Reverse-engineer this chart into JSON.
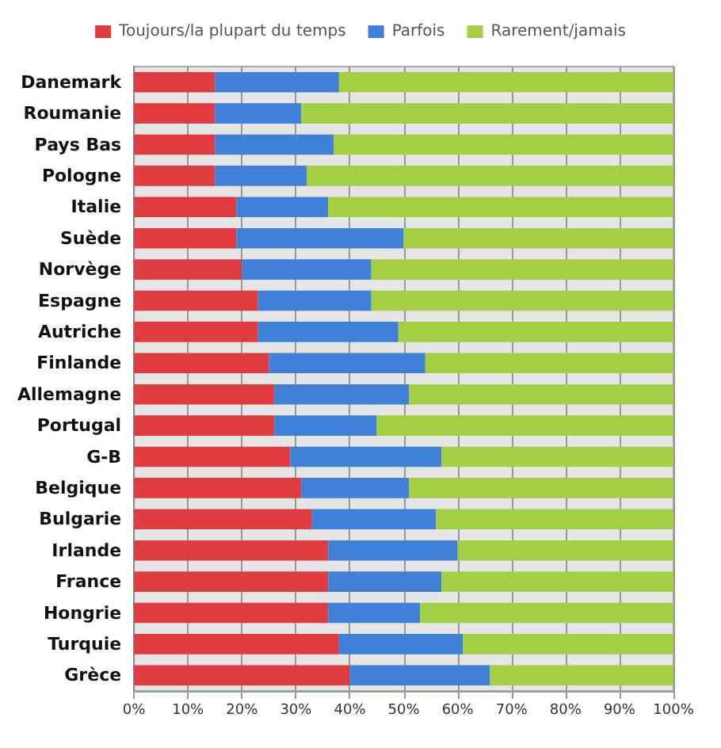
{
  "chart_data": {
    "type": "bar",
    "orientation": "horizontal",
    "stacked": true,
    "categories": [
      "Danemark",
      "Roumanie",
      "Pays Bas",
      "Pologne",
      "Italie",
      "Suède",
      "Norvège",
      "Espagne",
      "Autriche",
      "Finlande",
      "Allemagne",
      "Portugal",
      "G-B",
      "Belgique",
      "Bulgarie",
      "Irlande",
      "France",
      "Hongrie",
      "Turquie",
      "Grèce"
    ],
    "series": [
      {
        "name": "Toujours/la plupart du temps",
        "color": "#e03c3f",
        "values": [
          15,
          15,
          15,
          15,
          19,
          19,
          20,
          23,
          23,
          25,
          26,
          26,
          29,
          31,
          33,
          36,
          36,
          36,
          38,
          40
        ]
      },
      {
        "name": "Parfois",
        "color": "#3f80d8",
        "values": [
          23,
          16,
          22,
          17,
          17,
          31,
          24,
          21,
          26,
          29,
          25,
          19,
          28,
          20,
          23,
          24,
          21,
          17,
          23,
          26
        ]
      },
      {
        "name": "Rarement/jamais",
        "color": "#a3cf45",
        "values": [
          62,
          69,
          63,
          68,
          64,
          50,
          56,
          56,
          51,
          46,
          49,
          55,
          43,
          49,
          44,
          40,
          43,
          47,
          39,
          34
        ]
      }
    ],
    "xlim": [
      0,
      100
    ],
    "xticks": [
      {
        "value": 0,
        "label": "0%"
      },
      {
        "value": 10,
        "label": "10%"
      },
      {
        "value": 20,
        "label": "20%"
      },
      {
        "value": 30,
        "label": "30%"
      },
      {
        "value": 40,
        "label": "40%"
      },
      {
        "value": 50,
        "label": "50%"
      },
      {
        "value": 60,
        "label": "60%"
      },
      {
        "value": 70,
        "label": "70%"
      },
      {
        "value": 80,
        "label": "80%"
      },
      {
        "value": 90,
        "label": "90%"
      },
      {
        "value": 100,
        "label": "100%"
      }
    ],
    "grid": "x",
    "legend": "top"
  }
}
